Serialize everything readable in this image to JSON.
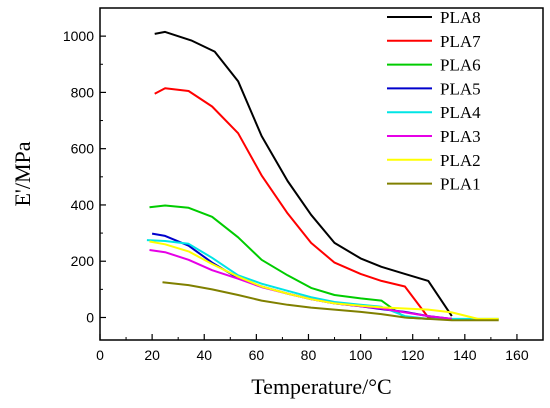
{
  "chart_data": {
    "type": "line",
    "title": "",
    "xlabel": "Temperature/°C",
    "ylabel": "E'/MPa",
    "xlim": [
      0,
      170
    ],
    "ylim": [
      -80,
      1100
    ],
    "xticks": [
      0,
      20,
      40,
      60,
      80,
      100,
      120,
      140,
      160
    ],
    "yticks": [
      0,
      200,
      400,
      600,
      800,
      1000
    ],
    "grid": false,
    "legend_position": "top-right",
    "series": [
      {
        "name": "PLA8",
        "color": "#000000",
        "x": [
          21,
          25,
          35,
          44,
          53,
          62,
          72,
          81,
          90,
          100,
          108,
          117,
          126,
          135
        ],
        "y": [
          1008,
          1015,
          985,
          945,
          840,
          645,
          485,
          365,
          265,
          210,
          180,
          155,
          130,
          5
        ]
      },
      {
        "name": "PLA7",
        "color": "#ff0000",
        "x": [
          21,
          25,
          34,
          43,
          53,
          62,
          72,
          81,
          90,
          100,
          108,
          117,
          126,
          135
        ],
        "y": [
          795,
          815,
          805,
          750,
          655,
          505,
          370,
          265,
          195,
          155,
          130,
          110,
          0,
          -5
        ]
      },
      {
        "name": "PLA6",
        "color": "#00cc00",
        "x": [
          19,
          25,
          34,
          43,
          53,
          62,
          72,
          81,
          90,
          100,
          108,
          117,
          126,
          135
        ],
        "y": [
          392,
          398,
          390,
          358,
          285,
          205,
          150,
          105,
          80,
          68,
          60,
          0,
          -5,
          -5
        ]
      },
      {
        "name": "PLA5",
        "color": "#0000cc",
        "x": [
          20,
          25,
          34,
          43,
          53,
          62,
          72,
          81,
          90,
          100,
          108,
          117,
          126,
          135
        ],
        "y": [
          298,
          290,
          255,
          195,
          140,
          110,
          85,
          65,
          50,
          40,
          30,
          20,
          5,
          -5
        ]
      },
      {
        "name": "PLA4",
        "color": "#00e5e5",
        "x": [
          18,
          25,
          34,
          43,
          53,
          62,
          72,
          81,
          90,
          100,
          108,
          117,
          126,
          135,
          145,
          153
        ],
        "y": [
          275,
          272,
          262,
          212,
          150,
          120,
          95,
          72,
          55,
          45,
          38,
          5,
          -5,
          -5,
          -5,
          -5
        ]
      },
      {
        "name": "PLA3",
        "color": "#e600e6",
        "x": [
          19,
          25,
          34,
          43,
          53,
          62,
          72,
          81,
          90,
          100,
          108,
          117,
          126,
          135
        ],
        "y": [
          240,
          232,
          205,
          168,
          138,
          108,
          85,
          65,
          50,
          40,
          32,
          18,
          5,
          -5
        ]
      },
      {
        "name": "PLA2",
        "color": "#ffff00",
        "x": [
          19,
          25,
          34,
          43,
          53,
          62,
          72,
          81,
          90,
          100,
          108,
          117,
          126,
          135,
          145,
          153
        ],
        "y": [
          270,
          260,
          235,
          190,
          145,
          110,
          85,
          65,
          50,
          42,
          36,
          32,
          28,
          18,
          -5,
          -5
        ]
      },
      {
        "name": "PLA1",
        "color": "#808000",
        "x": [
          24,
          34,
          43,
          53,
          62,
          72,
          81,
          90,
          100,
          108,
          117,
          126,
          135,
          145,
          153
        ],
        "y": [
          125,
          115,
          100,
          80,
          60,
          45,
          35,
          28,
          20,
          12,
          0,
          -5,
          -10,
          -10,
          -10
        ]
      }
    ]
  }
}
